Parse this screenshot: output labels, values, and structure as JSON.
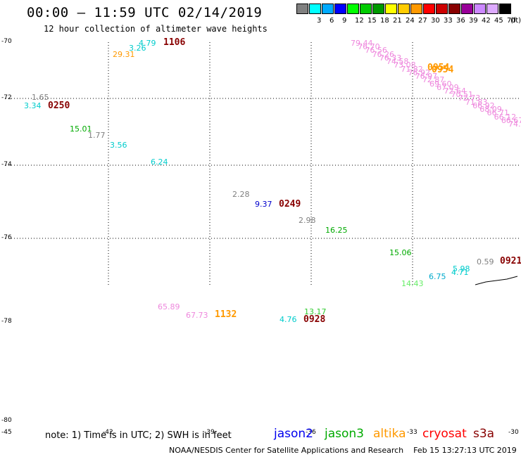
{
  "header": {
    "title": "00:00 – 11:59 UTC 02/14/2019",
    "subtitle": "12 hour collection of altimeter wave heights"
  },
  "legend": {
    "unit": "(ft)",
    "bins": [
      {
        "color": "#808080",
        "label": ""
      },
      {
        "color": "#00ffff",
        "label": "3"
      },
      {
        "color": "#00aaff",
        "label": "6"
      },
      {
        "color": "#0000ff",
        "label": "9"
      },
      {
        "color": "#00ff00",
        "label": "12"
      },
      {
        "color": "#00cc00",
        "label": "15"
      },
      {
        "color": "#009900",
        "label": "18"
      },
      {
        "color": "#ffff00",
        "label": "21"
      },
      {
        "color": "#ffcc00",
        "label": "24"
      },
      {
        "color": "#ff9900",
        "label": "27"
      },
      {
        "color": "#ff0000",
        "label": "30"
      },
      {
        "color": "#cc0000",
        "label": "33"
      },
      {
        "color": "#880000",
        "label": "36"
      },
      {
        "color": "#990099",
        "label": "39"
      },
      {
        "color": "#cc88ff",
        "label": "42"
      },
      {
        "color": "#ddaaff",
        "label": "45"
      },
      {
        "color": "#000000",
        "label": "70"
      }
    ]
  },
  "axes": {
    "lat_labels": [
      "-70",
      "-72",
      "-74",
      "-76",
      "-78",
      "-80"
    ],
    "lon_labels": [
      "-45",
      "-42",
      "-39",
      "-36",
      "-33",
      "-30"
    ]
  },
  "observations": [
    {
      "text": "4.79",
      "color": "#00cccc"
    },
    {
      "text": "3.26",
      "color": "#00cccc"
    },
    {
      "text": "29.31",
      "color": "#ff9900"
    },
    {
      "text": "1.65",
      "color": "#808080"
    },
    {
      "text": "3.34",
      "color": "#00cccc"
    },
    {
      "text": "15.01",
      "color": "#00aa00"
    },
    {
      "text": "1.77",
      "color": "#808080"
    },
    {
      "text": "3.56",
      "color": "#00cccc"
    },
    {
      "text": "6.24",
      "color": "#00cccc"
    },
    {
      "text": "2.28",
      "color": "#808080"
    },
    {
      "text": "9.37",
      "color": "#0000cc"
    },
    {
      "text": "2.98",
      "color": "#808080"
    },
    {
      "text": "16.25",
      "color": "#00aa00"
    },
    {
      "text": "15.06",
      "color": "#00aa00"
    },
    {
      "text": "0.59",
      "color": "#808080"
    },
    {
      "text": "6.75",
      "color": "#00aacc"
    },
    {
      "text": "5.98",
      "color": "#00cccc"
    },
    {
      "text": "4.71",
      "color": "#00cccc"
    },
    {
      "text": "14.43",
      "color": "#66ee66"
    },
    {
      "text": "65.89",
      "color": "#ee88dd"
    },
    {
      "text": "67.73",
      "color": "#ee88dd"
    },
    {
      "text": "13.17",
      "color": "#33cc33"
    },
    {
      "text": "4.76",
      "color": "#00cccc"
    }
  ],
  "pass_times": [
    {
      "text": "1106",
      "color": "#880000"
    },
    {
      "text": "0250",
      "color": "#880000"
    },
    {
      "text": "0249",
      "color": "#880000"
    },
    {
      "text": "0921",
      "color": "#880000"
    },
    {
      "text": "1132",
      "color": "#ff9900"
    },
    {
      "text": "0928",
      "color": "#880000"
    },
    {
      "text": "0954",
      "color": "#ff9900"
    }
  ],
  "track_values": [
    "79.44",
    "76.70",
    "76.56",
    "76.26",
    "76.33",
    "74.58",
    "73.08",
    "71.82",
    "76.92",
    "76.97",
    "72.87",
    "69.60",
    "67.09",
    "72.64",
    "70.51",
    "72.73",
    "71.83",
    "66.92",
    "68.09",
    "66.71",
    "66.12",
    "66.67",
    "74.3"
  ],
  "footer": {
    "note": "note: 1) Time is in UTC; 2) SWH is in feet",
    "satellites": [
      {
        "name": "jason2",
        "color": "#0000ee"
      },
      {
        "name": "jason3",
        "color": "#00aa00"
      },
      {
        "name": "altika",
        "color": "#ff9900"
      },
      {
        "name": "cryosat",
        "color": "#ff0000"
      },
      {
        "name": "s3a",
        "color": "#880000"
      }
    ],
    "credit": "NOAA/NESDIS Center for Satellite Applications and Research",
    "timestamp": "Feb 15 13:27:13 UTC 2019"
  }
}
